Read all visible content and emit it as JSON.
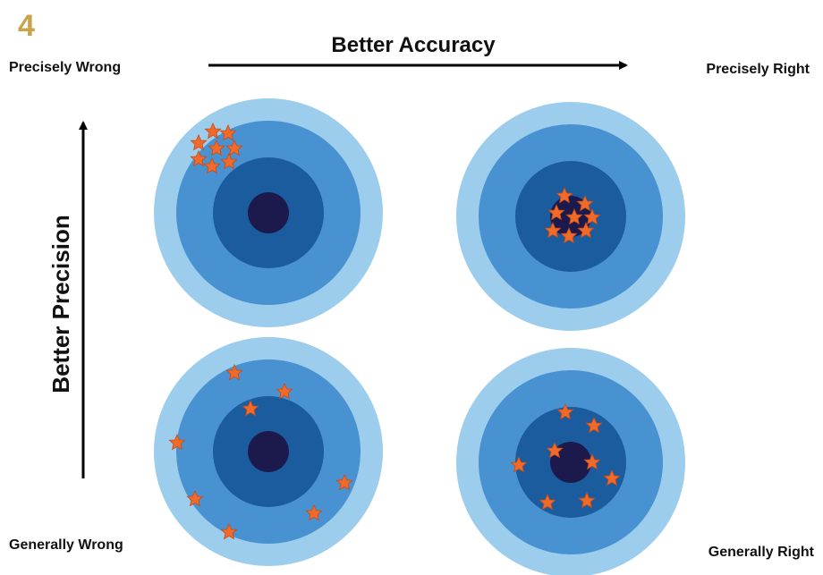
{
  "badge": "4",
  "axes": {
    "horizontal": "Better Accuracy",
    "vertical": "Better Precision"
  },
  "corners": {
    "top_left": "Precisely Wrong",
    "top_right": "Precisely Right",
    "bottom_left": "Generally Wrong",
    "bottom_right": "Generally Right"
  }
}
